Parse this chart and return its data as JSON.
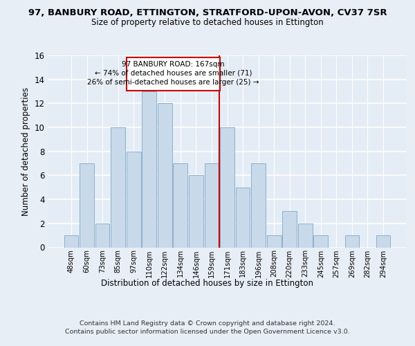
{
  "title1": "97, BANBURY ROAD, ETTINGTON, STRATFORD-UPON-AVON, CV37 7SR",
  "title2": "Size of property relative to detached houses in Ettington",
  "xlabel": "Distribution of detached houses by size in Ettington",
  "ylabel": "Number of detached properties",
  "categories": [
    "48sqm",
    "60sqm",
    "73sqm",
    "85sqm",
    "97sqm",
    "110sqm",
    "122sqm",
    "134sqm",
    "146sqm",
    "159sqm",
    "171sqm",
    "183sqm",
    "196sqm",
    "208sqm",
    "220sqm",
    "233sqm",
    "245sqm",
    "257sqm",
    "269sqm",
    "282sqm",
    "294sqm"
  ],
  "values": [
    1,
    7,
    2,
    10,
    8,
    13,
    12,
    7,
    6,
    7,
    10,
    5,
    7,
    1,
    3,
    2,
    1,
    0,
    1,
    0,
    1
  ],
  "bar_color": "#c8d9ea",
  "bar_edge_color": "#8ab0cc",
  "annotation_title": "97 BANBURY ROAD: 167sqm",
  "annotation_line1": "← 74% of detached houses are smaller (71)",
  "annotation_line2": "26% of semi-detached houses are larger (25) →",
  "annotation_box_color": "#ffffff",
  "annotation_box_edge_color": "#cc0000",
  "vline_color": "#cc0000",
  "footer1": "Contains HM Land Registry data © Crown copyright and database right 2024.",
  "footer2": "Contains public sector information licensed under the Open Government Licence v3.0.",
  "ylim": [
    0,
    16
  ],
  "bg_color": "#e8eef5",
  "plot_bg_color": "#e4edf5"
}
